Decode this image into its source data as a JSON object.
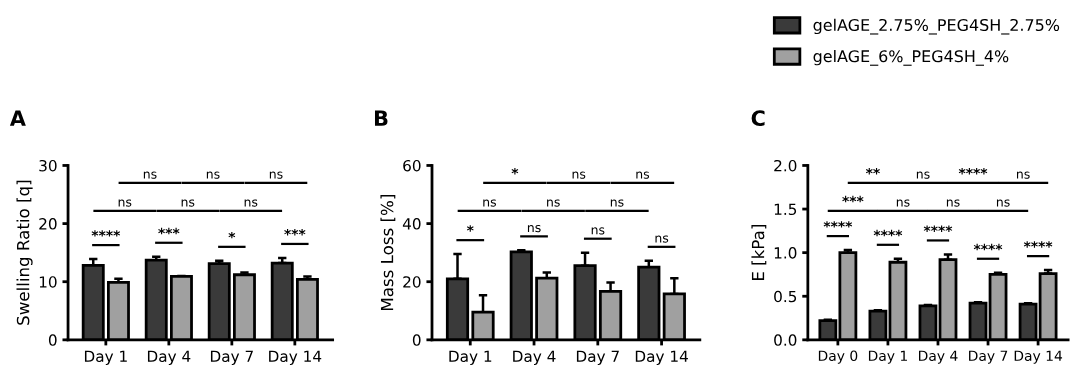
{
  "chart_data": [
    {
      "type": "bar",
      "title": "A",
      "ylabel": "Swelling Ratio [q]",
      "categories": [
        "Day 1",
        "Day 4",
        "Day 7",
        "Day 14"
      ],
      "ylim": [
        0,
        30
      ],
      "yticks": [
        0,
        10,
        20,
        30
      ],
      "grid": false,
      "legend": false,
      "series": [
        {
          "color": "#3a3a3a",
          "values": [
            12.8,
            13.7,
            13.1,
            13.2
          ],
          "errors": [
            [
              12.8,
              13.9
            ],
            [
              13.7,
              14.3
            ],
            [
              13.1,
              13.6
            ],
            [
              13.2,
              14.1
            ]
          ]
        },
        {
          "color": "#a0a0a0",
          "values": [
            9.9,
            10.9,
            11.2,
            10.4
          ],
          "errors": [
            [
              9.9,
              10.5
            ],
            [
              10.9,
              11.0
            ],
            [
              11.2,
              11.6
            ],
            [
              10.4,
              10.9
            ]
          ]
        }
      ],
      "annotations": [
        "****",
        "***",
        "*",
        "***",
        "ns",
        "ns",
        "ns",
        "ns",
        "ns",
        "ns"
      ]
    },
    {
      "type": "bar",
      "title": "B",
      "ylabel": "Mass Loss [%]",
      "categories": [
        "Day 1",
        "Day 4",
        "Day 7",
        "Day 14"
      ],
      "ylim": [
        0,
        60
      ],
      "yticks": [
        0,
        20,
        40,
        60
      ],
      "grid": false,
      "legend": false,
      "series": [
        {
          "color": "#3a3a3a",
          "values": [
            21,
            30.3,
            25.5,
            25
          ],
          "errors": [
            [
              21,
              29.5
            ],
            [
              30.3,
              30.8
            ],
            [
              25.5,
              30
            ],
            [
              25,
              27.2
            ]
          ]
        },
        {
          "color": "#a0a0a0",
          "values": [
            9.5,
            21.2,
            16.7,
            15.8
          ],
          "errors": [
            [
              9.5,
              15.3
            ],
            [
              21.2,
              23.2
            ],
            [
              16.7,
              19.7
            ],
            [
              15.8,
              21.2
            ]
          ]
        }
      ],
      "annotations": [
        "*",
        "ns",
        "ns",
        "ns",
        "ns",
        "ns",
        "ns",
        "*",
        "ns",
        "ns"
      ]
    },
    {
      "type": "bar",
      "title": "C",
      "ylabel": "E [kPa]",
      "categories": [
        "Day 0",
        "Day 1",
        "Day 4",
        "Day 7",
        "Day 14"
      ],
      "ylim": [
        0,
        2.0
      ],
      "yticks": [
        {
          "value": 0,
          "label": "0.0"
        },
        0.5,
        {
          "value": 1,
          "label": "1.0"
        },
        1.5,
        {
          "value": 2,
          "label": "2.0"
        }
      ],
      "grid": false,
      "legend": "top",
      "series": [
        {
          "name": "gelAGE_2.75%_PEG4SH_2.75%",
          "color": "#3a3a3a",
          "values": [
            0.22,
            0.33,
            0.39,
            0.42,
            0.41
          ],
          "errors": [
            [
              0.22,
              0.23
            ],
            [
              0.33,
              0.34
            ],
            [
              0.39,
              0.4
            ],
            [
              0.42,
              0.43
            ],
            [
              0.41,
              0.42
            ]
          ]
        },
        {
          "name": "gelAGE_6%_PEG4SH_4%",
          "color": "#a0a0a0",
          "values": [
            1.0,
            0.89,
            0.92,
            0.75,
            0.76
          ],
          "errors": [
            [
              1.0,
              1.03
            ],
            [
              0.89,
              0.93
            ],
            [
              0.92,
              0.98
            ],
            [
              0.75,
              0.77
            ],
            [
              0.76,
              0.8
            ]
          ]
        }
      ],
      "annotations": [
        "****",
        "****",
        "****",
        "****",
        "****",
        "***",
        "ns",
        "ns",
        "ns",
        "**",
        "ns",
        "****",
        "ns"
      ]
    }
  ]
}
